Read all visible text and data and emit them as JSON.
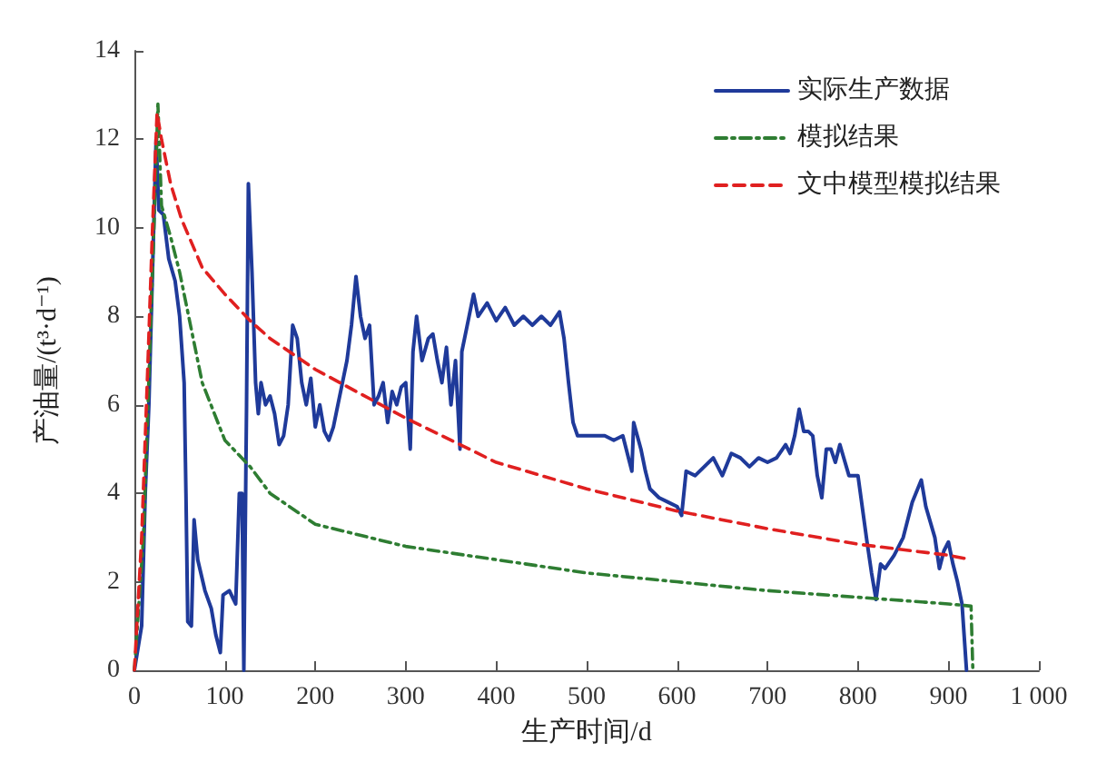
{
  "chart_data": {
    "type": "line",
    "xlabel": "生产时间/d",
    "ylabel": "产油量/(t³·d⁻¹)",
    "xlim": [
      0,
      1000
    ],
    "xticks": [
      0,
      100,
      200,
      300,
      400,
      500,
      600,
      700,
      800,
      900,
      {
        "value": 1000,
        "label": "1 000"
      }
    ],
    "ylim": [
      0,
      14
    ],
    "yticks": [
      0,
      2,
      4,
      6,
      8,
      10,
      12,
      14
    ],
    "grid": false,
    "legend": "top right",
    "marker": "none",
    "series": [
      {
        "name": "实际生产数据",
        "color": "#1f3a9a",
        "line_style": "solid",
        "x": [
          0,
          8,
          12,
          16,
          20,
          24,
          27,
          32,
          38,
          45,
          50,
          55,
          57,
          59,
          63,
          66,
          70,
          78,
          85,
          90,
          95,
          98,
          105,
          112,
          116,
          119,
          121,
          124,
          126,
          130,
          134,
          137,
          140,
          145,
          150,
          155,
          160,
          165,
          170,
          175,
          180,
          185,
          190,
          195,
          200,
          205,
          210,
          215,
          220,
          225,
          230,
          235,
          240,
          245,
          250,
          255,
          260,
          265,
          270,
          275,
          280,
          285,
          290,
          295,
          300,
          305,
          308,
          312,
          318,
          325,
          330,
          335,
          340,
          345,
          350,
          355,
          360,
          362,
          370,
          375,
          380,
          390,
          400,
          410,
          420,
          430,
          440,
          450,
          460,
          470,
          475,
          480,
          485,
          490,
          500,
          510,
          520,
          530,
          540,
          550,
          552,
          560,
          565,
          570,
          580,
          590,
          600,
          605,
          610,
          620,
          630,
          640,
          650,
          660,
          670,
          680,
          690,
          700,
          710,
          720,
          725,
          730,
          735,
          740,
          745,
          750,
          755,
          760,
          765,
          770,
          775,
          780,
          790,
          800,
          810,
          815,
          820,
          825,
          830,
          840,
          850,
          860,
          870,
          875,
          885,
          890,
          895,
          900,
          905,
          910,
          915,
          920
        ],
        "values": [
          0,
          1,
          4,
          6,
          9,
          12,
          10.4,
          10.3,
          9.3,
          8.8,
          8,
          6.5,
          4,
          1.1,
          1,
          3.4,
          2.5,
          1.8,
          1.4,
          0.8,
          0.4,
          1.7,
          1.8,
          1.5,
          4,
          4,
          0,
          6,
          11,
          9,
          6.5,
          5.8,
          6.5,
          6,
          6.2,
          5.8,
          5.1,
          5.3,
          6,
          7.8,
          7.5,
          6.5,
          6,
          6.6,
          5.5,
          6,
          5.4,
          5.2,
          5.5,
          6,
          6.5,
          7,
          7.8,
          8.9,
          8,
          7.5,
          7.8,
          6,
          6.2,
          6.5,
          5.6,
          6.3,
          6,
          6.4,
          6.5,
          5,
          7.2,
          8,
          7,
          7.5,
          7.6,
          7,
          6.5,
          7.3,
          6,
          7,
          5,
          7.2,
          8,
          8.5,
          8,
          8.3,
          7.9,
          8.2,
          7.8,
          8,
          7.8,
          8,
          7.8,
          8.1,
          7.5,
          6.5,
          5.6,
          5.3,
          5.3,
          5.3,
          5.3,
          5.2,
          5.3,
          4.5,
          5.6,
          5,
          4.5,
          4.1,
          3.9,
          3.8,
          3.7,
          3.5,
          4.5,
          4.4,
          4.6,
          4.8,
          4.4,
          4.9,
          4.8,
          4.6,
          4.8,
          4.7,
          4.8,
          5.1,
          4.9,
          5.3,
          5.9,
          5.4,
          5.4,
          5.3,
          4.4,
          3.9,
          5,
          5,
          4.7,
          5.1,
          4.4,
          4.4,
          2.9,
          2.2,
          1.6,
          2.4,
          2.3,
          2.6,
          3,
          3.8,
          4.3,
          3.7,
          3,
          2.3,
          2.7,
          2.9,
          2.4,
          2,
          1.5,
          0
        ]
      },
      {
        "name": "模拟结果",
        "color": "#2e7d32",
        "line_style": "dashdot",
        "x": [
          0,
          10,
          20,
          26,
          30,
          40,
          50,
          60,
          75,
          100,
          128,
          150,
          200,
          300,
          400,
          500,
          600,
          700,
          800,
          900,
          925,
          927
        ],
        "values": [
          0,
          3,
          9,
          12.8,
          10.5,
          9.8,
          9,
          8,
          6.5,
          5.2,
          4.6,
          4,
          3.3,
          2.8,
          2.5,
          2.2,
          2,
          1.8,
          1.65,
          1.5,
          1.45,
          0
        ]
      },
      {
        "name": "文中模型模拟结果",
        "color": "#e02020",
        "line_style": "dashed",
        "x": [
          0,
          8,
          15,
          20,
          25,
          30,
          40,
          52,
          75,
          100,
          128,
          150,
          200,
          300,
          400,
          500,
          600,
          700,
          800,
          900,
          925
        ],
        "values": [
          0,
          3,
          7,
          10,
          12.6,
          12,
          11,
          10.2,
          9.1,
          8.5,
          7.9,
          7.5,
          6.8,
          5.7,
          4.7,
          4.1,
          3.6,
          3.2,
          2.85,
          2.6,
          2.5
        ]
      }
    ]
  }
}
